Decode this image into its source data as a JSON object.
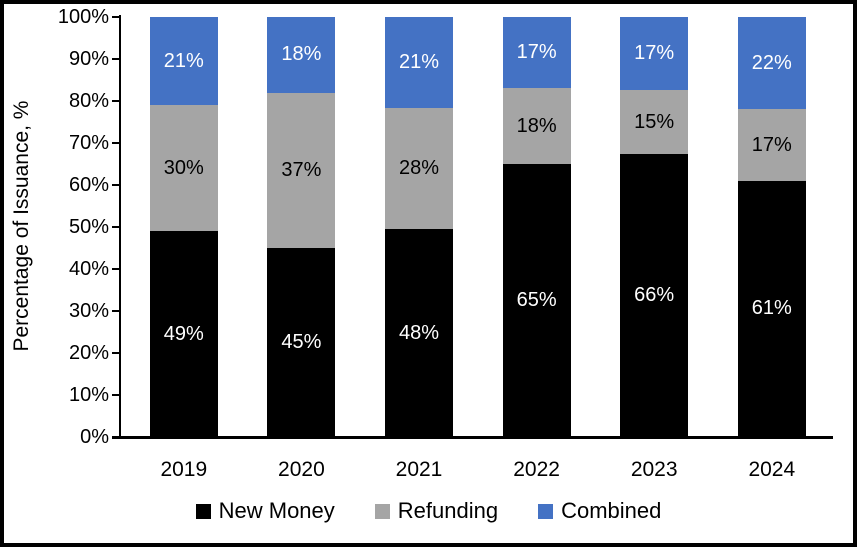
{
  "chart_data": {
    "type": "bar",
    "stacked": true,
    "stacked_to_100_percent": true,
    "title": "",
    "xlabel": "",
    "ylabel": "Percentage of Issuance, %",
    "categories": [
      "2019",
      "2020",
      "2021",
      "2022",
      "2023",
      "2024"
    ],
    "series": [
      {
        "name": "New Money",
        "color": "#000000",
        "label_color": "#ffffff",
        "values": [
          49,
          45,
          48,
          65,
          66,
          61
        ]
      },
      {
        "name": "Refunding",
        "color": "#A5A5A5",
        "label_color": "#000000",
        "values": [
          30,
          37,
          28,
          18,
          15,
          17
        ]
      },
      {
        "name": "Combined",
        "color": "#4472C4",
        "label_color": "#ffffff",
        "values": [
          21,
          18,
          21,
          17,
          17,
          22
        ]
      }
    ],
    "data_label_suffix": "%",
    "yticks": [
      "0%",
      "10%",
      "20%",
      "30%",
      "40%",
      "50%",
      "60%",
      "70%",
      "80%",
      "90%",
      "100%"
    ],
    "ylim": [
      0,
      100
    ],
    "grid": false,
    "legend_position": "bottom",
    "frame_border_color": "#000000",
    "plot_background": "#ffffff"
  }
}
